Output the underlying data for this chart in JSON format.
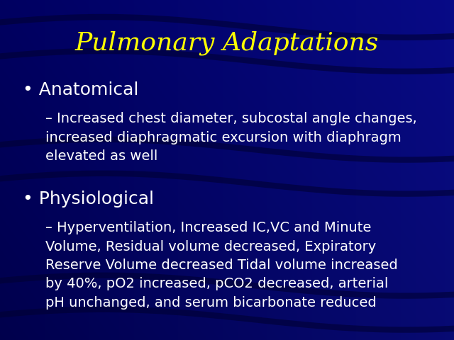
{
  "title": "Pulmonary Adaptations",
  "title_color": "#FFFF00",
  "title_fontsize": 26,
  "bg_color": "#00008B",
  "text_color": "#FFFFFF",
  "bullet1_header": "Anatomical",
  "bullet1_header_fontsize": 18,
  "bullet1_sub": "Increased chest diameter, subcostal angle changes,\nincreased diaphragmatic excursion with diaphragm\nelevated as well",
  "bullet1_sub_fontsize": 14,
  "bullet2_header": "Physiological",
  "bullet2_header_fontsize": 18,
  "bullet2_sub": "Hyperventilation, Increased IC,VC and Minute\nVolume, Residual volume decreased, Expiratory\nReserve Volume decreased Tidal volume increased\nby 40%, pO2 increased, pCO2 decreased, arterial\npH unchanged, and serum bicarbonate reduced",
  "bullet2_sub_fontsize": 14,
  "figwidth": 6.4,
  "figheight": 4.8,
  "dpi": 100
}
